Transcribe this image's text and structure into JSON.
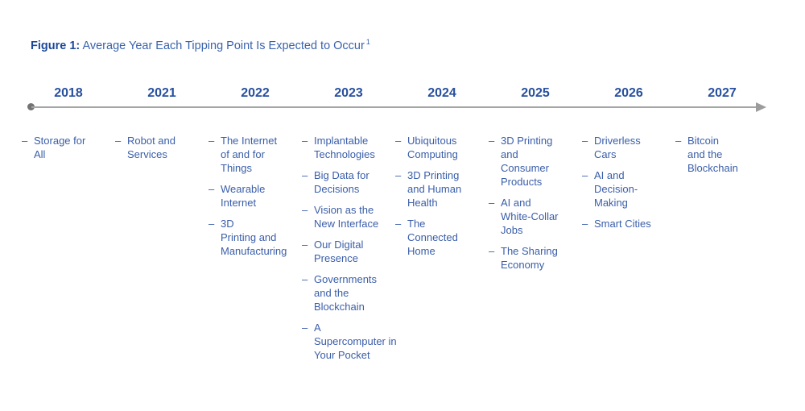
{
  "title": {
    "prefix": "Figure 1:",
    "text": " Average Year Each Tipping Point Is Expected to Occur",
    "footnote_marker": "1"
  },
  "timeline": {
    "bullet": "–",
    "columns": [
      {
        "year": "2018",
        "items": [
          "Storage for\nAll"
        ]
      },
      {
        "year": "2021",
        "items": [
          "Robot and\nServices"
        ]
      },
      {
        "year": "2022",
        "items": [
          "The Internet\nof and for\nThings",
          "Wearable\nInternet",
          "3D\nPrinting and\nManufacturing"
        ]
      },
      {
        "year": "2023",
        "items": [
          "Implantable\nTechnologies",
          "Big Data for\nDecisions",
          "Vision as the\nNew Interface",
          "Our Digital\nPresence",
          "Governments\nand the\nBlockchain",
          "A\nSupercomputer in\nYour Pocket"
        ]
      },
      {
        "year": "2024",
        "items": [
          "Ubiquitous\nComputing",
          "3D Printing\nand Human\nHealth",
          "The\nConnected\nHome"
        ]
      },
      {
        "year": "2025",
        "items": [
          "3D Printing\nand\nConsumer\nProducts",
          "AI and\nWhite-Collar\nJobs",
          "The Sharing\nEconomy"
        ]
      },
      {
        "year": "2026",
        "items": [
          "Driverless\nCars",
          "AI and\nDecision-\nMaking",
          "Smart Cities"
        ]
      },
      {
        "year": "2027",
        "items": [
          "Bitcoin\nand the\nBlockchain"
        ]
      }
    ]
  },
  "colors": {
    "title_prefix": "#1c4899",
    "title_text": "#3a63ac",
    "year": "#27509e",
    "item_text": "#3a5ea9",
    "axis_line": "#a5a5a5",
    "axis_dot": "#737373",
    "axis_arrow": "#9c9c9c",
    "background": "#ffffff"
  }
}
